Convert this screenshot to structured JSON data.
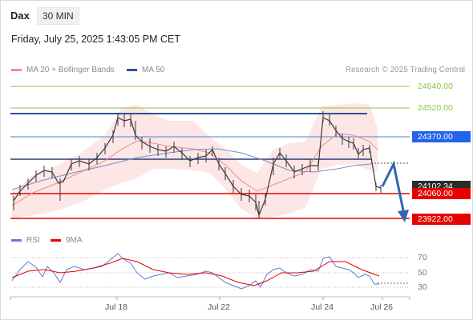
{
  "header": {
    "symbol": "Dax",
    "timeframe": "30 MIN",
    "timestamp": "Friday, July 25, 2025 1:43:05 PM CET"
  },
  "legend": {
    "ma20": "MA 20 + Bollinger Bands",
    "ma50": "MA 50",
    "rsi": "RSI",
    "ma9": "9MA"
  },
  "credit": "Research © 2025 Trading Central",
  "colors": {
    "ma20": "#f28b8b",
    "ma50": "#2f4f9f",
    "band": "#fde2e2",
    "resistance_green": "#8dc63f",
    "support_red": "#e60000",
    "pivot_blue": "#2563eb",
    "current_price": "#2b2b2b",
    "rsi_line": "#5b7fd6",
    "ma9_line": "#e60000"
  },
  "price_levels": [
    {
      "label": "24640.00",
      "kind": "resistance-green"
    },
    {
      "label": "24520.00",
      "kind": "resistance-green"
    },
    {
      "label": "24370.00",
      "kind": "pivot"
    },
    {
      "label": "24102.34",
      "kind": "current"
    },
    {
      "label": "24060.00",
      "kind": "support"
    },
    {
      "label": "23922.00",
      "kind": "support"
    }
  ],
  "rsi_ticks": [
    "70",
    "50",
    "30"
  ],
  "x_axis": [
    "Jul 18",
    "Jul 22",
    "Jul 24",
    "Jul 26"
  ]
}
